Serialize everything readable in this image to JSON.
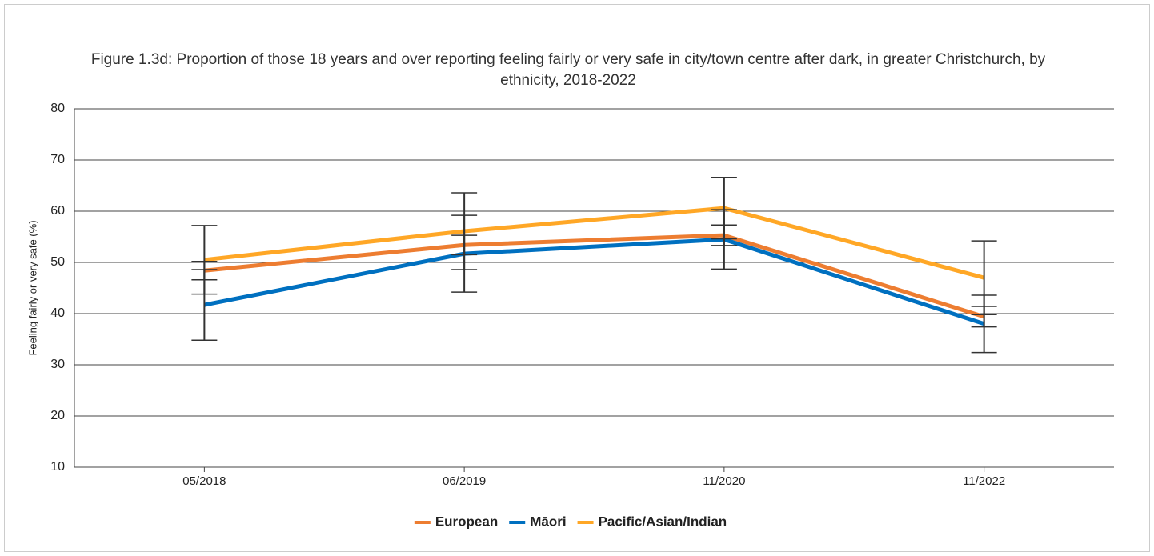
{
  "chart_data": {
    "type": "line",
    "title": "Figure 1.3d: Proportion of those 18 years and over reporting feeling fairly or very safe in city/town centre after dark, in greater Christchurch, by ethnicity, 2018-2022",
    "y_label": "Feeling fairly or very safe (%)",
    "categories": [
      "05/2018",
      "06/2019",
      "11/2020",
      "11/2022"
    ],
    "series": [
      {
        "name": "European",
        "color": "#ed7d31",
        "values": [
          48.4,
          53.4,
          55.3,
          39.4
        ],
        "errors": [
          1.8,
          1.9,
          2.0,
          2.0
        ]
      },
      {
        "name": "Māori",
        "color": "#0070c0",
        "values": [
          41.7,
          51.7,
          54.5,
          38.0
        ],
        "errors": [
          6.9,
          7.5,
          5.8,
          5.6
        ]
      },
      {
        "name": "Pacific/Asian/Indian",
        "color": "#ffa726",
        "values": [
          50.5,
          56.1,
          60.6,
          47.0
        ],
        "errors": [
          6.7,
          7.5,
          6.0,
          7.2
        ]
      }
    ],
    "ylim": [
      10,
      80
    ],
    "yticks": [
      10,
      20,
      30,
      40,
      50,
      60,
      70,
      80
    ],
    "grid": true,
    "legend": "bottom"
  }
}
